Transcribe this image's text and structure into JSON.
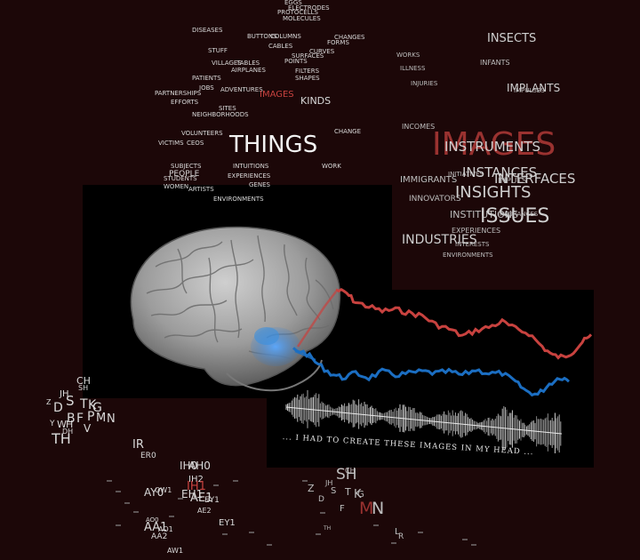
{
  "caption": "... I HAD TO CREATE THESE IMAGES IN MY HEAD ...",
  "colors": {
    "background": "#1c0708",
    "highlight": "#c8423f",
    "blue_trace": "#1b6ec2",
    "red_trace": "#c8423f",
    "activation": "#3a8fe0"
  },
  "clusters": {
    "cluster1": {
      "words": [
        "EGGS",
        "ELECTRODES",
        "PROTOCELLS",
        "MOLECULES",
        "DISEASES",
        "BUTTONS",
        "COLUMNS",
        "CHANGES",
        "FORMS",
        "CABLES",
        "STUFF",
        "SURFACES",
        "CURVES",
        "VILLAGES",
        "TABLES",
        "POINTS",
        "AIRPLANES",
        "FILTERS",
        "PATIENTS",
        "SHAPES",
        "JOBS",
        "ADVENTURES",
        "IMAGES",
        "PARTNERSHIPS",
        "KINDS",
        "EFFORTS",
        "SITES",
        "NEIGHBORHOODS",
        "VOLUNTEERS",
        "CHANGE",
        "THINGS",
        "VICTIMS",
        "CEOS",
        "WORK",
        "SUBJECTS",
        "PEOPLE",
        "INTUITIONS",
        "STUDENTS",
        "EXPERIENCES",
        "WOMEN",
        "ARTISTS",
        "GENES",
        "ENVIRONMENTS"
      ]
    },
    "cluster2": {
      "words": [
        "INSECTS",
        "WORKS",
        "INFANTS",
        "ILLNESS",
        "INJURIES",
        "IMPLANTS",
        "IMPULSES",
        "INCOMES",
        "IMAGES",
        "INSTRUMENTS",
        "INITIATIVES",
        "INSTANCES",
        "INTERFACES",
        "INPUTS",
        "IMMIGRANTS",
        "INNOVATORS",
        "INSIGHTS",
        "INSTITUTIONS",
        "ISSUES",
        "INSURANCES",
        "EXPERIENCES",
        "INDUSTRIES",
        "INTERESTS",
        "ENVIRONMENTS"
      ]
    },
    "phonemes_left": {
      "words": [
        "CH",
        "SH",
        "JH",
        "Z",
        "S",
        "T",
        "K",
        "G",
        "D",
        "B",
        "F",
        "P",
        "M",
        "N",
        "Y",
        "W",
        "H",
        "DH",
        "V",
        "TH"
      ]
    },
    "phonemes_vowels": {
      "words": [
        "IR",
        "ER0",
        "IH0",
        "AH0",
        "IH2",
        "AY0",
        "OW1",
        "IH1",
        "AE1",
        "EH1",
        "EY1",
        "AE2",
        "AO0",
        "AA1",
        "AA2",
        "AO1",
        "AW1",
        "EY1"
      ]
    },
    "phonemes_right": {
      "words": [
        "SH",
        "CH",
        "Z",
        "JH",
        "S",
        "T",
        "K",
        "G",
        "D",
        "F",
        "M",
        "N",
        "TH",
        "L",
        "R"
      ]
    }
  }
}
